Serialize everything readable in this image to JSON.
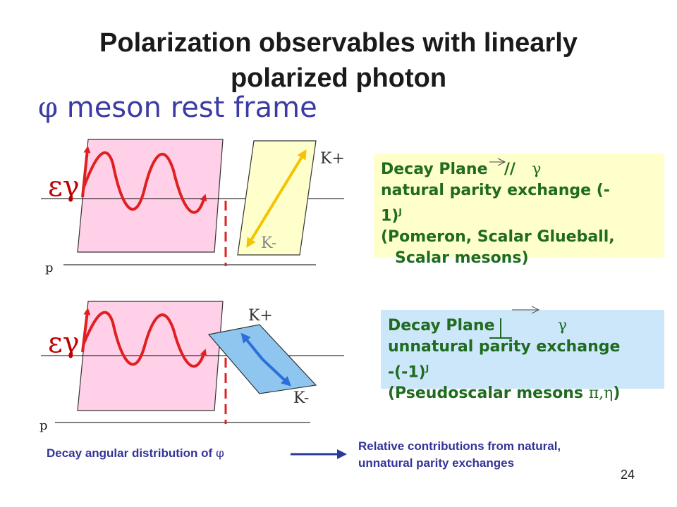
{
  "slide": {
    "title_line1": "Polarization observables with linearly",
    "title_line2": "polarized photon",
    "subtitle_symbol": "φ",
    "subtitle_text": "meson rest frame",
    "page_number": "24"
  },
  "diagram_top": {
    "epsilon_label": "εγ",
    "proton_label": "p",
    "kplus_label": "K+",
    "kminus_label": "K-",
    "plane_color": "#ffd0e8",
    "decay_plane_color": "#ffffcc",
    "kaon_arrow_color": "#f5c400"
  },
  "diagram_bottom": {
    "epsilon_label": "εγ",
    "proton_label": "p",
    "kplus_label": "K+",
    "kminus_label": "K-",
    "plane_color": "#ffd0e8",
    "decay_plane_color": "#8fc6f0",
    "kaon_arrow_color": "#2d6fd6"
  },
  "box_parallel": {
    "line1_text": "Decay Plane",
    "line1_symbol": "//",
    "line1_gamma": "γ",
    "line2": "natural parity exchange (-",
    "line3": "1)",
    "line3_sup": "J",
    "line4": "(Pomeron, Scalar Glueball,",
    "line5": "Scalar mesons)",
    "background": "#ffffcc"
  },
  "box_perpendicular": {
    "line1_text": "Decay Plane",
    "line1_gamma": "γ",
    "line2": "unnatural parity exchange",
    "line3": "-(-1)",
    "line3_sup": "J",
    "line4": "(Pseudoscalar mesons",
    "line4_symbols": "π,η",
    "line4_close": ")",
    "background": "#cce6fa"
  },
  "bottom_notes": {
    "left_text": "Decay angular  distribution of",
    "left_symbol": "φ",
    "right_line1": "Relative contributions from natural,",
    "right_line2": "unnatural parity exchanges"
  },
  "colors": {
    "photon_arrow": "#e02020",
    "dashed_line": "#e02020",
    "text_green": "#1f6b1f",
    "subtitle_blue": "#3b3ba3",
    "note_blue": "#333399",
    "relation_arrow": "#2a3a9a"
  }
}
